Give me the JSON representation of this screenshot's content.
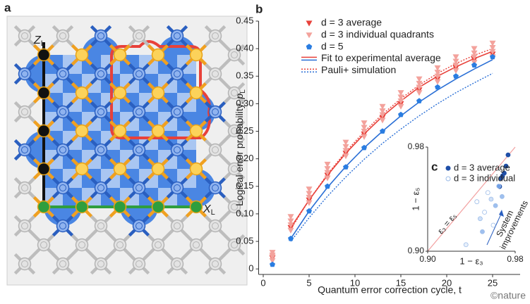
{
  "diagram": {
    "label": "a",
    "z_label": "Z",
    "z_sub": "L",
    "x_label": "X",
    "x_sub": "L"
  },
  "credit": "©nature",
  "chart_data": [
    {
      "type": "line",
      "panel": "b",
      "xlabel": "Quantum error correction cycle, t",
      "ylabel": "Logical error probability, ",
      "ylabel_symbol": "p",
      "ylabel_sub": "L",
      "xlim": [
        -0.5,
        28
      ],
      "xticks": [
        0,
        5,
        10,
        15,
        20,
        25
      ],
      "ylim": [
        -0.01,
        0.45
      ],
      "yticks": [
        0,
        0.05,
        {
          "value": 0.1,
          "label": "0.10"
        },
        0.15,
        {
          "value": 0.2,
          "label": "0.20"
        },
        0.25,
        {
          "value": 0.3,
          "label": "0.30"
        },
        0.35,
        {
          "value": 0.4,
          "label": "0.40"
        },
        0.45
      ],
      "series": [
        {
          "name": "d = 3 average",
          "color": "#e8413a",
          "marker": "triangle-down",
          "x": [
            1,
            3,
            5,
            7,
            9,
            11,
            13,
            15,
            17,
            19,
            21,
            23,
            25
          ],
          "values": [
            0.02,
            0.075,
            0.125,
            0.17,
            0.21,
            0.245,
            0.275,
            0.3,
            0.325,
            0.345,
            0.365,
            0.38,
            0.39
          ]
        },
        {
          "name": "d = 3 individual quadrants",
          "color": "#f3a29c",
          "marker": "triangle-down",
          "x": [
            1,
            1,
            1,
            1,
            3,
            3,
            3,
            3,
            5,
            5,
            5,
            5,
            7,
            7,
            7,
            7,
            9,
            9,
            9,
            9,
            11,
            11,
            11,
            11,
            13,
            13,
            13,
            13,
            15,
            15,
            15,
            15,
            17,
            17,
            17,
            17,
            19,
            19,
            19,
            19,
            21,
            21,
            21,
            21,
            23,
            23,
            23,
            23,
            25,
            25,
            25,
            25
          ],
          "values": [
            0.015,
            0.022,
            0.025,
            0.03,
            0.07,
            0.08,
            0.087,
            0.095,
            0.12,
            0.13,
            0.137,
            0.145,
            0.165,
            0.175,
            0.182,
            0.19,
            0.205,
            0.215,
            0.222,
            0.23,
            0.24,
            0.25,
            0.257,
            0.265,
            0.27,
            0.28,
            0.287,
            0.295,
            0.295,
            0.305,
            0.312,
            0.32,
            0.32,
            0.33,
            0.337,
            0.345,
            0.34,
            0.35,
            0.357,
            0.365,
            0.36,
            0.37,
            0.377,
            0.385,
            0.375,
            0.385,
            0.392,
            0.4,
            0.385,
            0.395,
            0.402,
            0.41
          ]
        },
        {
          "name": "d = 5",
          "color": "#2a7de1",
          "marker": "pentagon",
          "x": [
            1,
            3,
            5,
            7,
            9,
            11,
            13,
            15,
            17,
            19,
            21,
            23,
            25
          ],
          "values": [
            0.008,
            0.055,
            0.105,
            0.15,
            0.185,
            0.22,
            0.25,
            0.28,
            0.305,
            0.33,
            0.35,
            0.37,
            0.385
          ]
        },
        {
          "name": "Fit to experimental average",
          "color": "#e8413a",
          "line": "solid",
          "x": [
            3,
            5,
            7,
            9,
            11,
            13,
            15,
            17,
            19,
            21,
            23,
            25
          ],
          "values": [
            0.075,
            0.125,
            0.17,
            0.21,
            0.245,
            0.277,
            0.305,
            0.33,
            0.35,
            0.367,
            0.382,
            0.395
          ]
        },
        {
          "color": "#2a6fd6",
          "line": "solid",
          "x": [
            3,
            5,
            7,
            9,
            11,
            13,
            15,
            17,
            19,
            21,
            23,
            25
          ],
          "values": [
            0.055,
            0.105,
            0.148,
            0.186,
            0.22,
            0.25,
            0.278,
            0.303,
            0.325,
            0.345,
            0.363,
            0.38
          ]
        },
        {
          "name": "Pauli+ simulation",
          "color": "#e8413a",
          "line": "dotted",
          "x": [
            3,
            5,
            7,
            9,
            11,
            13,
            15,
            17,
            19,
            21,
            23,
            25
          ],
          "values": [
            0.072,
            0.125,
            0.172,
            0.213,
            0.249,
            0.281,
            0.309,
            0.334,
            0.355,
            0.373,
            0.388,
            0.4
          ]
        },
        {
          "color": "#2a6fd6",
          "line": "dotted",
          "x": [
            3,
            5,
            7,
            9,
            11,
            13,
            15,
            17,
            19,
            21,
            23,
            25
          ],
          "values": [
            0.05,
            0.093,
            0.132,
            0.167,
            0.199,
            0.228,
            0.254,
            0.278,
            0.3,
            0.32,
            0.338,
            0.355
          ]
        }
      ]
    },
    {
      "type": "scatter",
      "panel": "c",
      "xlabel": "1 − ε₃",
      "ylabel": "1 − ε₅",
      "xlim": [
        0.9,
        0.98
      ],
      "ylim": [
        0.9,
        0.98
      ],
      "xticks": [
        {
          "value": 0.9,
          "label": "0.90"
        },
        0.98
      ],
      "yticks": [
        {
          "value": 0.9,
          "label": "0.90"
        },
        0.98
      ],
      "diagonal_label": "ε₃ = ε₅",
      "diagonal_color": "#f2a0a0",
      "arrow_label": [
        "System",
        "improvements"
      ],
      "series": [
        {
          "name": "d = 3 average",
          "color": "#1f4fa8",
          "filled": true,
          "x": [
            0.9735,
            0.9716,
            0.9684,
            0.9658,
            0.97,
            0.967
          ],
          "values": [
            0.974,
            0.9654,
            0.9578,
            0.9497,
            0.96,
            0.956
          ]
        },
        {
          "name": "d = 3 individual",
          "color": "#9bbbe8",
          "filled": false,
          "colors": [
            "#ffffff",
            "#cfe0f7",
            "#9fc0ef",
            "#ffffff",
            "#cfe0f7",
            "#ffffff",
            "#e8f0fb",
            "#9fc0ef",
            "#6f9fe6",
            "#ffffff",
            "#9fc0ef"
          ],
          "x": [
            0.955,
            0.958,
            0.962,
            0.952,
            0.948,
            0.945,
            0.935,
            0.95,
            0.965,
            0.96,
            0.968
          ],
          "values": [
            0.945,
            0.94,
            0.935,
            0.93,
            0.925,
            0.938,
            0.905,
            0.915,
            0.95,
            0.92,
            0.942
          ]
        }
      ]
    }
  ]
}
